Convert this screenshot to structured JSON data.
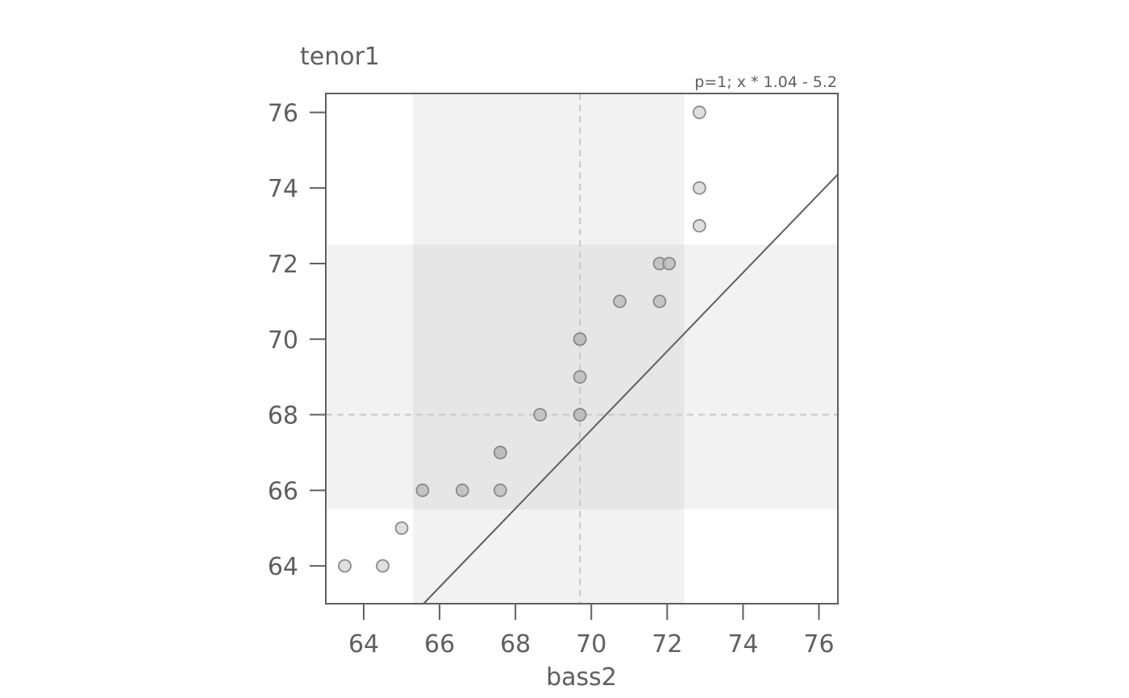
{
  "chart_data": {
    "type": "scatter",
    "xlabel": "bass2",
    "ylabel": "tenor1",
    "annotation": "p=1; x * 1.04 - 5.2",
    "xlim": [
      63,
      76.5
    ],
    "ylim": [
      63,
      76.5
    ],
    "xticks": [
      64,
      66,
      68,
      70,
      72,
      74,
      76
    ],
    "yticks": [
      64,
      66,
      68,
      70,
      72,
      74,
      76
    ],
    "x_band": [
      65.3,
      72.45
    ],
    "y_band": [
      65.5,
      72.5
    ],
    "x_median": 69.7,
    "y_median": 68,
    "fit_line": {
      "slope": 1.04,
      "intercept": -5.2
    },
    "points": [
      {
        "x": 63.5,
        "y": 64
      },
      {
        "x": 64.5,
        "y": 64
      },
      {
        "x": 65.0,
        "y": 65
      },
      {
        "x": 65.55,
        "y": 66
      },
      {
        "x": 66.6,
        "y": 66
      },
      {
        "x": 67.6,
        "y": 66
      },
      {
        "x": 67.6,
        "y": 67
      },
      {
        "x": 67.6,
        "y": 67
      },
      {
        "x": 68.65,
        "y": 68
      },
      {
        "x": 69.7,
        "y": 68
      },
      {
        "x": 69.7,
        "y": 68
      },
      {
        "x": 69.7,
        "y": 69
      },
      {
        "x": 69.7,
        "y": 70
      },
      {
        "x": 69.7,
        "y": 70
      },
      {
        "x": 70.75,
        "y": 71
      },
      {
        "x": 71.8,
        "y": 71
      },
      {
        "x": 71.8,
        "y": 72
      },
      {
        "x": 72.05,
        "y": 72
      },
      {
        "x": 72.85,
        "y": 73
      },
      {
        "x": 72.85,
        "y": 74
      },
      {
        "x": 72.85,
        "y": 76
      }
    ],
    "colors": {
      "axis": "#5f5f5f",
      "band": "#f2f2f2",
      "band_overlap": "#e6e6e6",
      "median_line": "#c8c8c8",
      "point_fill": "#bdbdbd",
      "point_fill_outer": "#d9d9d9",
      "point_stroke": "#8a8a8a"
    }
  }
}
